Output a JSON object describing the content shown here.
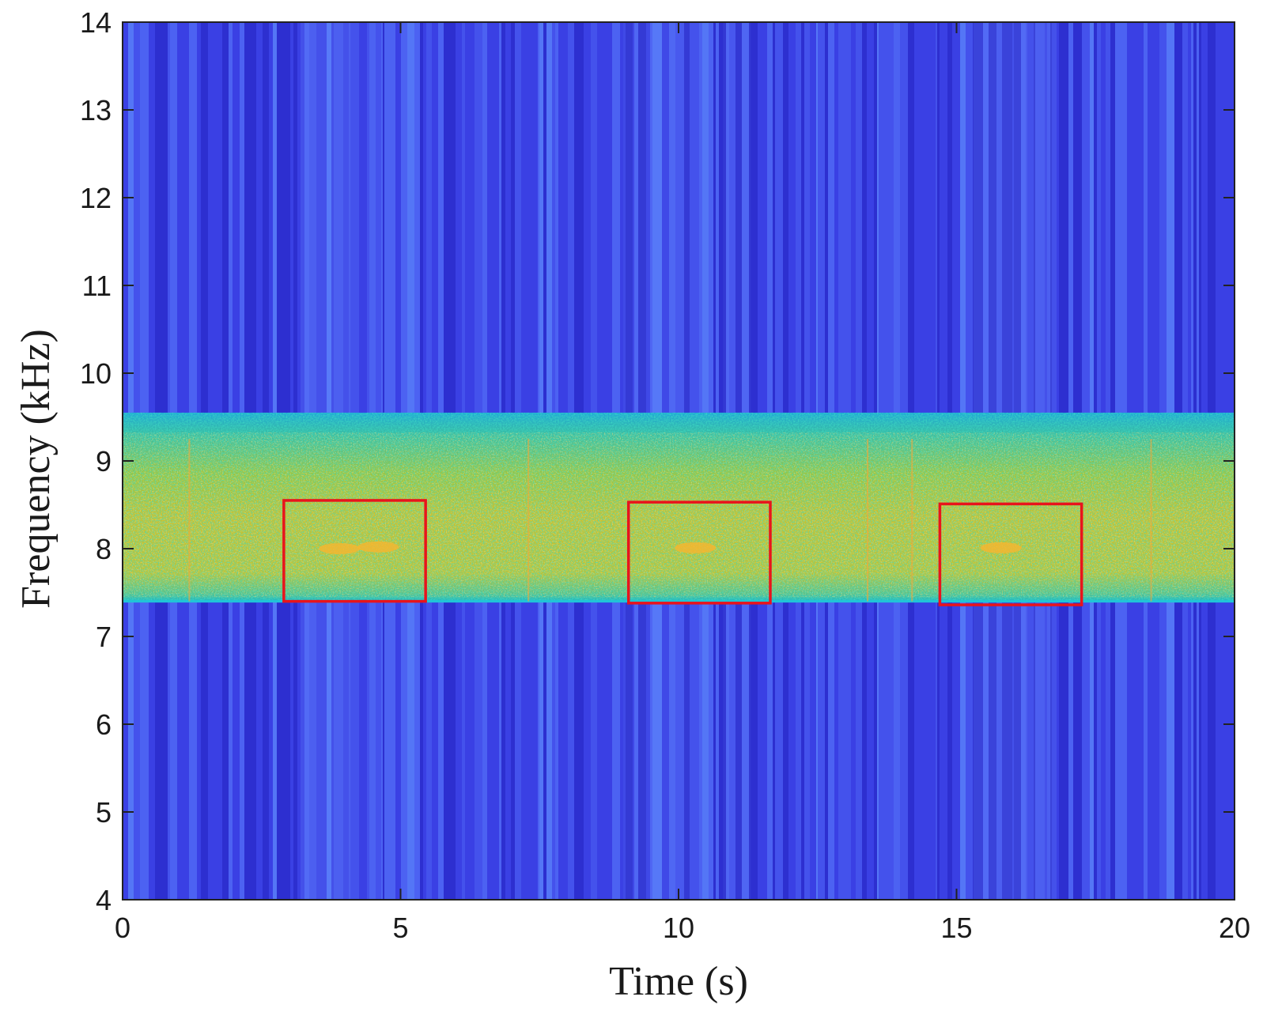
{
  "chart_data": {
    "type": "heatmap",
    "title": "",
    "xlabel": "Time (s)",
    "ylabel": "Frequency (kHz)",
    "xlim": [
      0,
      20
    ],
    "ylim": [
      4,
      14
    ],
    "x_ticks": [
      0,
      5,
      10,
      15,
      20
    ],
    "y_ticks": [
      4,
      5,
      6,
      7,
      8,
      9,
      10,
      11,
      12,
      13,
      14
    ],
    "colormap": "parula",
    "grid": false,
    "legend": "none",
    "background_intensity": 0.15,
    "bands": [
      {
        "f_low": 7.4,
        "f_high": 9.55,
        "intensity": 0.72
      }
    ],
    "annotations": [
      {
        "kind": "rectangle",
        "color": "#e8141c",
        "t_start": 2.9,
        "t_end": 5.45,
        "f_low": 7.4,
        "f_high": 8.55
      },
      {
        "kind": "rectangle",
        "color": "#e8141c",
        "t_start": 9.1,
        "t_end": 11.65,
        "f_low": 7.38,
        "f_high": 8.53
      },
      {
        "kind": "rectangle",
        "color": "#e8141c",
        "t_start": 14.7,
        "t_end": 17.25,
        "f_low": 7.36,
        "f_high": 8.51
      }
    ]
  }
}
